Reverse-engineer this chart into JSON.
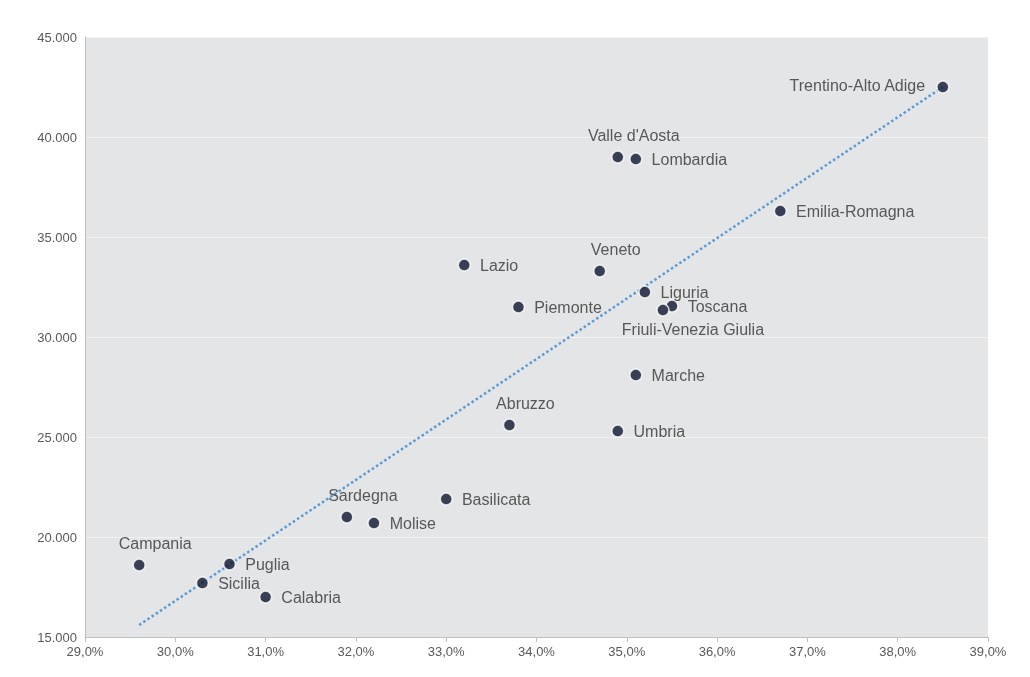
{
  "chart_data": {
    "type": "scatter",
    "x": [
      38.5,
      34.9,
      35.1,
      36.7,
      33.2,
      34.7,
      35.2,
      35.5,
      35.4,
      33.8,
      35.1,
      33.7,
      34.9,
      33.0,
      31.9,
      32.2,
      29.6,
      30.6,
      30.3,
      31.0
    ],
    "series": [
      {
        "color": "#0d1530",
        "values": [
          42500,
          39000,
          38900,
          36300,
          33600,
          33300,
          32250,
          31550,
          31350,
          31500,
          28100,
          25600,
          25300,
          21900,
          21000,
          20700,
          18600,
          18650,
          17700,
          17000
        ]
      },
      {
        "type": "line",
        "color": "#5b9bd5",
        "line_style": "dotted",
        "marker": "none",
        "x": [
          29.6,
          38.5
        ],
        "values": [
          15600,
          42500
        ]
      }
    ],
    "annotations": [
      {
        "text": "Trentino-Alto Adige",
        "x": 38.5,
        "y": 42500
      },
      {
        "text": "Valle d'Aosta",
        "x": 34.9,
        "y": 39000
      },
      {
        "text": "Lombardia",
        "x": 35.1,
        "y": 38900
      },
      {
        "text": "Emilia-Romagna",
        "x": 36.7,
        "y": 36300
      },
      {
        "text": "Lazio",
        "x": 33.2,
        "y": 33600
      },
      {
        "text": "Veneto",
        "x": 34.7,
        "y": 33300
      },
      {
        "text": "Liguria",
        "x": 35.2,
        "y": 32250
      },
      {
        "text": "Toscana",
        "x": 35.5,
        "y": 31550
      },
      {
        "text": "Friuli-Venezia Giulia",
        "x": 35.4,
        "y": 31350
      },
      {
        "text": "Piemonte",
        "x": 33.8,
        "y": 31500
      },
      {
        "text": "Marche",
        "x": 35.1,
        "y": 28100
      },
      {
        "text": "Abruzzo",
        "x": 33.7,
        "y": 25600
      },
      {
        "text": "Umbria",
        "x": 34.9,
        "y": 25300
      },
      {
        "text": "Basilicata",
        "x": 33.0,
        "y": 21900
      },
      {
        "text": "Sardegna",
        "x": 31.9,
        "y": 21000
      },
      {
        "text": "Molise",
        "x": 32.2,
        "y": 20700
      },
      {
        "text": "Campania",
        "x": 29.6,
        "y": 18600
      },
      {
        "text": "Puglia",
        "x": 30.6,
        "y": 18650
      },
      {
        "text": "Sicilia",
        "x": 30.3,
        "y": 17700
      },
      {
        "text": "Calabria",
        "x": 31.0,
        "y": 17000
      }
    ],
    "marker": "circle",
    "xlim": [
      29,
      39
    ],
    "xticks": [
      {
        "value": 29,
        "label": "29,0%"
      },
      {
        "value": 30,
        "label": "30,0%"
      },
      {
        "value": 31,
        "label": "31,0%"
      },
      {
        "value": 32,
        "label": "32,0%"
      },
      {
        "value": 33,
        "label": "33,0%"
      },
      {
        "value": 34,
        "label": "34,0%"
      },
      {
        "value": 35,
        "label": "35,0%"
      },
      {
        "value": 36,
        "label": "36,0%"
      },
      {
        "value": 37,
        "label": "37,0%"
      },
      {
        "value": 38,
        "label": "38,0%"
      },
      {
        "value": 39,
        "label": "39,0%"
      }
    ],
    "ylim": [
      15000,
      45000
    ],
    "yticks": [
      {
        "value": 15000,
        "label": "15.000"
      },
      {
        "value": 20000,
        "label": "20.000"
      },
      {
        "value": 25000,
        "label": "25.000"
      },
      {
        "value": 30000,
        "label": "30.000"
      },
      {
        "value": 35000,
        "label": "35.000"
      },
      {
        "value": 40000,
        "label": "40.000"
      },
      {
        "value": 45000,
        "label": "45.000"
      }
    ],
    "grid": "y"
  }
}
